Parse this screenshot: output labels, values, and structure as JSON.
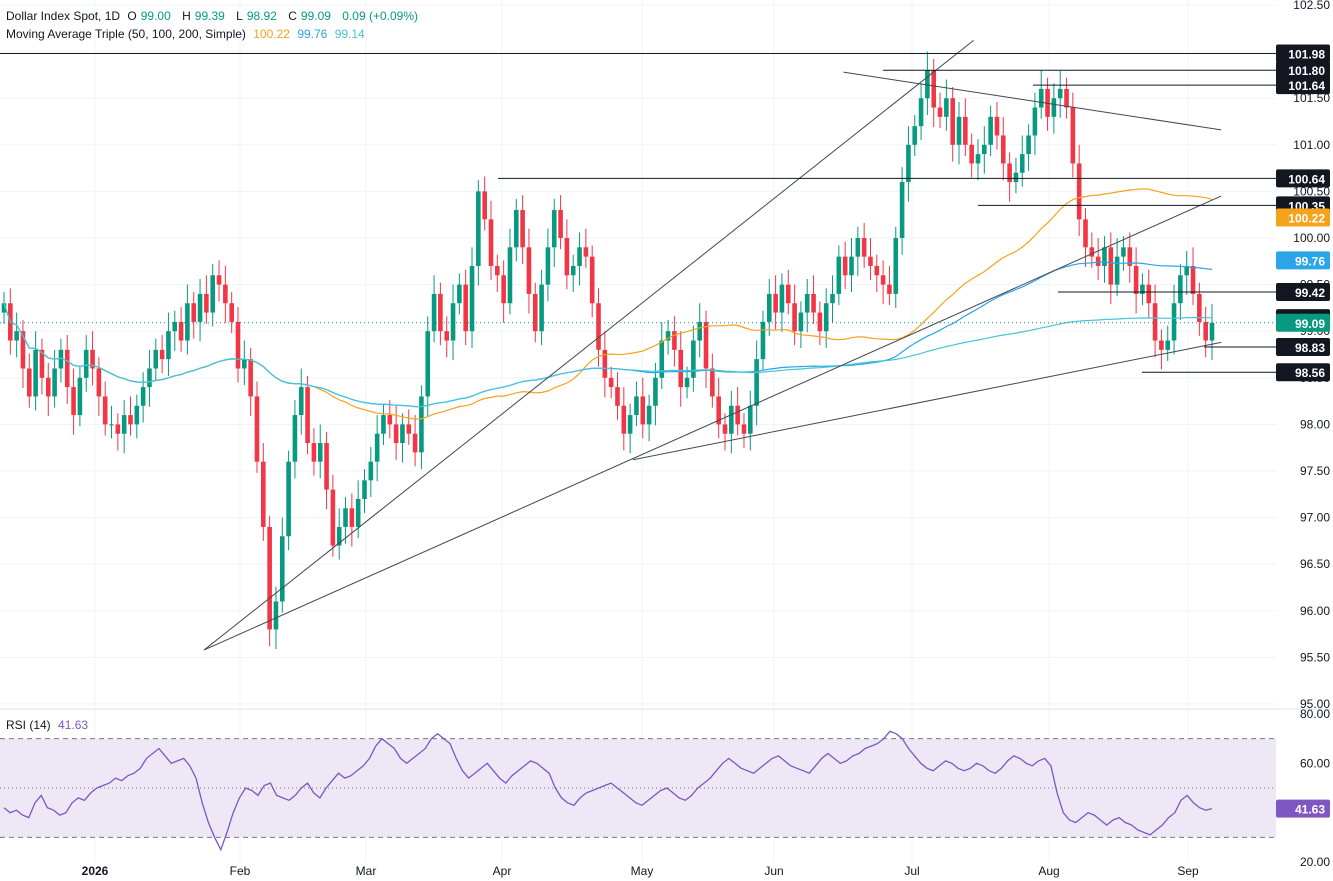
{
  "header": {
    "symbol": "Dollar Index Spot, 1D",
    "o_label": "O",
    "o": "99.00",
    "h_label": "H",
    "h": "99.39",
    "l_label": "L",
    "l": "98.92",
    "c_label": "C",
    "c": "99.09",
    "change": "0.09 (+0.09%)",
    "ma_label": "Moving Average Triple (50, 100, 200, Simple)",
    "ma50": "100.22",
    "ma100": "99.76",
    "ma200": "99.14"
  },
  "rsi": {
    "label": "RSI (14)",
    "value": "41.63"
  },
  "colors": {
    "up": "#089981",
    "down": "#f23645",
    "ma50": "#f7a21b",
    "ma100": "#2aa5e8",
    "ma200": "#45c5d6",
    "rsi": "#7e57c2",
    "rsi_band": "#ede7f6",
    "lines": "#131722"
  },
  "chart_data": [
    {
      "type": "candlestick",
      "title": "Dollar Index Spot, 1D",
      "x_axis_labels": [
        "2026",
        "Feb",
        "Mar",
        "Apr",
        "May",
        "Jun",
        "Jul",
        "Aug",
        "Sep"
      ],
      "y_ticks": [
        "95.00",
        "95.50",
        "96.00",
        "96.50",
        "97.00",
        "97.50",
        "98.00",
        "98.50",
        "99.00",
        "99.50",
        "100.00",
        "100.50",
        "101.00",
        "101.50",
        "102.00",
        "102.50"
      ],
      "ylim": [
        95.0,
        102.5
      ],
      "price_labels": [
        {
          "value": "101.98",
          "style": "dark"
        },
        {
          "value": "101.80",
          "style": "dark"
        },
        {
          "value": "101.64",
          "style": "dark"
        },
        {
          "value": "100.64",
          "style": "dark"
        },
        {
          "value": "100.35",
          "style": "dark"
        },
        {
          "value": "100.22",
          "style": "ma50"
        },
        {
          "value": "99.76",
          "style": "ma100"
        },
        {
          "value": "99.42",
          "style": "dark"
        },
        {
          "value": "99.14",
          "style": "dark"
        },
        {
          "value": "99.09",
          "style": "last"
        },
        {
          "value": "98.83",
          "style": "dark"
        },
        {
          "value": "98.56",
          "style": "dark"
        }
      ],
      "horizontal_levels": [
        101.98,
        101.8,
        101.64,
        100.64,
        100.35,
        99.42,
        98.83,
        98.56
      ],
      "trendlines": [
        {
          "from": [
            0.16,
            95.58
          ],
          "to": [
            0.763,
            102.12
          ]
        },
        {
          "from": [
            0.496,
            97.62
          ],
          "to": [
            0.957,
            98.88
          ]
        },
        {
          "from": [
            0.16,
            95.58
          ],
          "to": [
            0.957,
            100.45
          ]
        },
        {
          "from": [
            0.661,
            101.78
          ],
          "to": [
            0.957,
            101.16
          ]
        }
      ],
      "series": [
        {
          "name": "Dollar Index Spot",
          "close_path": [
            99.3,
            98.9,
            99.0,
            98.6,
            98.3,
            98.8,
            98.5,
            98.3,
            98.6,
            98.8,
            98.4,
            98.1,
            98.5,
            98.8,
            98.6,
            98.3,
            98.0,
            98.0,
            97.9,
            98.1,
            98.0,
            98.2,
            98.4,
            98.6,
            98.8,
            98.7,
            99.0,
            99.1,
            98.9,
            99.3,
            99.1,
            99.4,
            99.2,
            99.6,
            99.5,
            99.3,
            99.1,
            98.6,
            98.7,
            98.3,
            97.6,
            96.9,
            95.8,
            96.1,
            96.8,
            97.6,
            98.1,
            98.4,
            97.8,
            97.6,
            97.8,
            97.3,
            96.7,
            96.9,
            97.1,
            96.9,
            97.2,
            97.4,
            97.6,
            97.9,
            98.1,
            98.0,
            97.8,
            98.0,
            97.9,
            97.7,
            98.3,
            99.0,
            99.4,
            99.0,
            98.9,
            99.3,
            99.5,
            99.0,
            99.7,
            100.5,
            100.2,
            99.7,
            99.6,
            99.3,
            99.9,
            100.3,
            99.9,
            99.4,
            99.0,
            99.5,
            99.9,
            100.3,
            100.0,
            99.6,
            99.7,
            99.9,
            99.8,
            99.3,
            98.8,
            98.5,
            98.4,
            98.2,
            97.9,
            98.1,
            98.3,
            98.0,
            98.2,
            98.5,
            98.9,
            99.0,
            98.8,
            98.4,
            98.5,
            98.9,
            99.1,
            98.6,
            98.3,
            98.0,
            97.9,
            98.2,
            98.0,
            97.9,
            98.2,
            98.7,
            99.1,
            99.4,
            99.2,
            99.5,
            99.3,
            99.0,
            99.2,
            99.4,
            99.2,
            99.0,
            99.3,
            99.4,
            99.8,
            99.6,
            99.8,
            100.0,
            99.8,
            99.7,
            99.6,
            99.5,
            99.4,
            100.0,
            100.6,
            101.0,
            101.2,
            101.5,
            101.8,
            101.4,
            101.3,
            101.5,
            101.0,
            101.3,
            101.0,
            100.8,
            100.9,
            101.0,
            101.3,
            101.1,
            100.8,
            100.6,
            100.7,
            100.9,
            101.1,
            101.4,
            101.6,
            101.3,
            101.5,
            101.6,
            101.4,
            100.8,
            100.2,
            99.9,
            99.8,
            99.7,
            99.9,
            99.5,
            99.8,
            99.9,
            99.7,
            99.4,
            99.5,
            99.3,
            98.9,
            98.8,
            98.9,
            99.3,
            99.6,
            99.7,
            99.4,
            99.1,
            98.9,
            99.09
          ]
        },
        {
          "name": "MA 50",
          "color": "ma50"
        },
        {
          "name": "MA 100",
          "color": "ma100"
        },
        {
          "name": "MA 200",
          "color": "ma200"
        }
      ]
    },
    {
      "type": "line",
      "title": "RSI (14)",
      "y_ticks": [
        "20.00",
        "40.00",
        "60.00",
        "80.00"
      ],
      "ylim": [
        20,
        80
      ],
      "bands": [
        30,
        50,
        70
      ],
      "series": [
        {
          "name": "RSI (14)",
          "values": [
            42,
            40,
            41,
            39,
            38,
            44,
            47,
            42,
            41,
            39,
            40,
            44,
            46,
            45,
            48,
            50,
            51,
            52,
            54,
            53,
            55,
            56,
            58,
            62,
            64,
            66,
            63,
            60,
            61,
            62,
            59,
            54,
            44,
            36,
            30,
            25,
            32,
            40,
            46,
            50,
            49,
            47,
            51,
            52,
            47,
            46,
            45,
            47,
            50,
            52,
            48,
            46,
            50,
            53,
            56,
            54,
            55,
            57,
            59,
            62,
            67,
            70,
            68,
            66,
            62,
            60,
            62,
            64,
            66,
            70,
            72,
            70,
            68,
            62,
            57,
            54,
            56,
            58,
            60,
            57,
            54,
            52,
            55,
            57,
            59,
            61,
            60,
            58,
            56,
            50,
            46,
            44,
            43,
            46,
            48,
            49,
            50,
            51,
            52,
            50,
            48,
            46,
            44,
            43,
            45,
            47,
            49,
            50,
            48,
            46,
            45,
            47,
            50,
            52,
            54,
            57,
            60,
            62,
            60,
            58,
            57,
            56,
            58,
            60,
            62,
            63,
            61,
            59,
            58,
            57,
            56,
            59,
            62,
            64,
            62,
            60,
            61,
            63,
            64,
            66,
            67,
            68,
            70,
            73,
            72,
            70,
            66,
            63,
            60,
            58,
            57,
            59,
            61,
            60,
            58,
            57,
            58,
            60,
            59,
            57,
            56,
            58,
            61,
            63,
            62,
            60,
            59,
            61,
            62,
            59,
            48,
            40,
            37,
            36,
            38,
            40,
            39,
            37,
            35,
            37,
            38,
            36,
            35,
            33,
            32,
            31,
            33,
            35,
            38,
            40,
            45,
            47,
            44,
            42,
            41,
            41.63
          ]
        }
      ]
    }
  ]
}
